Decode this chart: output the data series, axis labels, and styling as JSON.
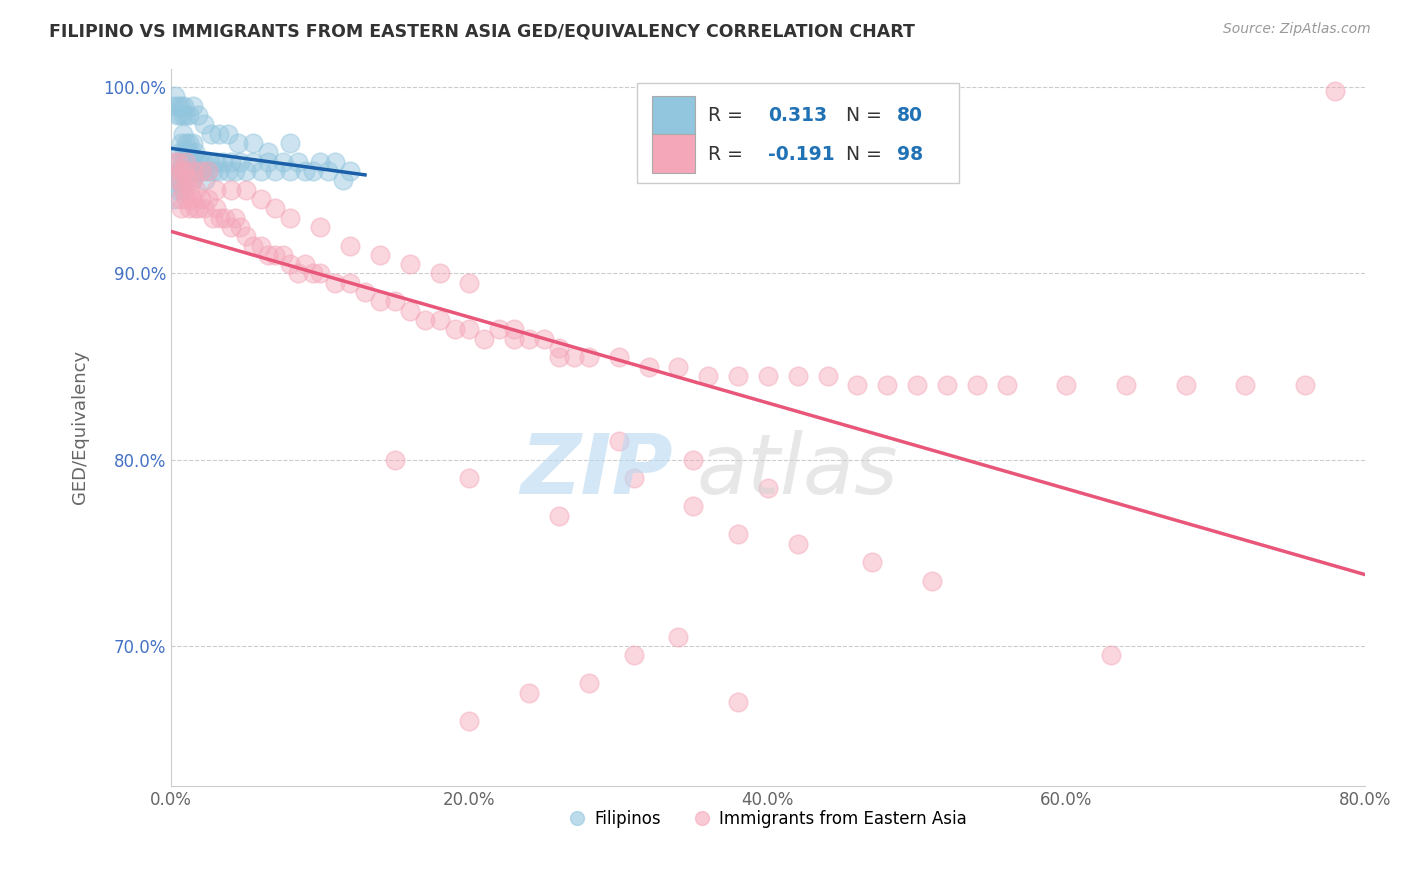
{
  "title": "FILIPINO VS IMMIGRANTS FROM EASTERN ASIA GED/EQUIVALENCY CORRELATION CHART",
  "source_text": "Source: ZipAtlas.com",
  "ylabel": "GED/Equivalency",
  "legend_labels": [
    "Filipinos",
    "Immigrants from Eastern Asia"
  ],
  "r_values": [
    0.313,
    -0.191
  ],
  "n_values": [
    80,
    98
  ],
  "blue_color": "#92c5de",
  "pink_color": "#f4a7b9",
  "blue_line_color": "#1a5fa8",
  "pink_line_color": "#e8567a",
  "r_text_color": "#2171b5",
  "background_color": "#ffffff",
  "xlim": [
    0.0,
    0.8
  ],
  "ylim": [
    0.625,
    1.01
  ],
  "xtick_labels": [
    "0.0%",
    "20.0%",
    "40.0%",
    "60.0%",
    "80.0%"
  ],
  "xtick_values": [
    0.0,
    0.2,
    0.4,
    0.6,
    0.8
  ],
  "ytick_labels": [
    "70.0%",
    "80.0%",
    "90.0%",
    "100.0%"
  ],
  "ytick_values": [
    0.7,
    0.8,
    0.9,
    1.0
  ],
  "blue_x": [
    0.002,
    0.003,
    0.004,
    0.005,
    0.005,
    0.006,
    0.006,
    0.007,
    0.007,
    0.008,
    0.008,
    0.008,
    0.009,
    0.009,
    0.01,
    0.01,
    0.01,
    0.011,
    0.011,
    0.012,
    0.012,
    0.013,
    0.013,
    0.014,
    0.014,
    0.015,
    0.015,
    0.016,
    0.017,
    0.018,
    0.019,
    0.02,
    0.021,
    0.022,
    0.023,
    0.025,
    0.026,
    0.028,
    0.03,
    0.032,
    0.035,
    0.038,
    0.04,
    0.043,
    0.046,
    0.05,
    0.055,
    0.06,
    0.065,
    0.07,
    0.075,
    0.08,
    0.085,
    0.09,
    0.095,
    0.1,
    0.105,
    0.11,
    0.115,
    0.12,
    0.002,
    0.003,
    0.004,
    0.005,
    0.006,
    0.007,
    0.008,
    0.009,
    0.01,
    0.012,
    0.015,
    0.018,
    0.022,
    0.027,
    0.032,
    0.038,
    0.045,
    0.055,
    0.065,
    0.08
  ],
  "blue_y": [
    0.94,
    0.95,
    0.955,
    0.945,
    0.96,
    0.95,
    0.965,
    0.955,
    0.97,
    0.96,
    0.975,
    0.945,
    0.965,
    0.955,
    0.97,
    0.96,
    0.95,
    0.965,
    0.955,
    0.97,
    0.96,
    0.965,
    0.955,
    0.96,
    0.95,
    0.96,
    0.97,
    0.965,
    0.955,
    0.96,
    0.955,
    0.96,
    0.955,
    0.96,
    0.95,
    0.955,
    0.96,
    0.955,
    0.96,
    0.955,
    0.96,
    0.955,
    0.96,
    0.955,
    0.96,
    0.955,
    0.96,
    0.955,
    0.96,
    0.955,
    0.96,
    0.955,
    0.96,
    0.955,
    0.955,
    0.96,
    0.955,
    0.96,
    0.95,
    0.955,
    0.99,
    0.995,
    0.985,
    0.99,
    0.985,
    0.99,
    0.985,
    0.99,
    0.985,
    0.985,
    0.99,
    0.985,
    0.98,
    0.975,
    0.975,
    0.975,
    0.97,
    0.97,
    0.965,
    0.97
  ],
  "pink_x": [
    0.002,
    0.004,
    0.005,
    0.006,
    0.007,
    0.007,
    0.008,
    0.009,
    0.01,
    0.011,
    0.012,
    0.013,
    0.014,
    0.015,
    0.016,
    0.017,
    0.018,
    0.02,
    0.022,
    0.025,
    0.028,
    0.03,
    0.033,
    0.036,
    0.04,
    0.043,
    0.046,
    0.05,
    0.055,
    0.06,
    0.065,
    0.07,
    0.075,
    0.08,
    0.085,
    0.09,
    0.095,
    0.1,
    0.11,
    0.12,
    0.13,
    0.14,
    0.15,
    0.16,
    0.17,
    0.18,
    0.19,
    0.2,
    0.21,
    0.22,
    0.23,
    0.24,
    0.25,
    0.26,
    0.27,
    0.28,
    0.3,
    0.32,
    0.34,
    0.36,
    0.38,
    0.4,
    0.42,
    0.44,
    0.46,
    0.48,
    0.5,
    0.52,
    0.54,
    0.56,
    0.6,
    0.64,
    0.68,
    0.72,
    0.76,
    0.006,
    0.01,
    0.015,
    0.02,
    0.025,
    0.03,
    0.04,
    0.05,
    0.06,
    0.07,
    0.08,
    0.1,
    0.12,
    0.14,
    0.16,
    0.18,
    0.2,
    0.23,
    0.26,
    0.3,
    0.35,
    0.4,
    0.78
  ],
  "pink_y": [
    0.96,
    0.95,
    0.96,
    0.94,
    0.95,
    0.935,
    0.945,
    0.955,
    0.94,
    0.95,
    0.935,
    0.945,
    0.94,
    0.95,
    0.935,
    0.945,
    0.935,
    0.94,
    0.935,
    0.94,
    0.93,
    0.935,
    0.93,
    0.93,
    0.925,
    0.93,
    0.925,
    0.92,
    0.915,
    0.915,
    0.91,
    0.91,
    0.91,
    0.905,
    0.9,
    0.905,
    0.9,
    0.9,
    0.895,
    0.895,
    0.89,
    0.885,
    0.885,
    0.88,
    0.875,
    0.875,
    0.87,
    0.87,
    0.865,
    0.87,
    0.865,
    0.865,
    0.865,
    0.86,
    0.855,
    0.855,
    0.855,
    0.85,
    0.85,
    0.845,
    0.845,
    0.845,
    0.845,
    0.845,
    0.84,
    0.84,
    0.84,
    0.84,
    0.84,
    0.84,
    0.84,
    0.84,
    0.84,
    0.84,
    0.84,
    0.955,
    0.96,
    0.955,
    0.955,
    0.955,
    0.945,
    0.945,
    0.945,
    0.94,
    0.935,
    0.93,
    0.925,
    0.915,
    0.91,
    0.905,
    0.9,
    0.895,
    0.87,
    0.855,
    0.81,
    0.8,
    0.785,
    0.998
  ],
  "pink_outliers_x": [
    0.15,
    0.2,
    0.26,
    0.31,
    0.35,
    0.38,
    0.42,
    0.47,
    0.51,
    0.63
  ],
  "pink_outliers_y": [
    0.8,
    0.79,
    0.77,
    0.79,
    0.775,
    0.76,
    0.755,
    0.745,
    0.735,
    0.695
  ],
  "pink_low_x": [
    0.2,
    0.24,
    0.28,
    0.31,
    0.34,
    0.38
  ],
  "pink_low_y": [
    0.66,
    0.675,
    0.68,
    0.695,
    0.705,
    0.67
  ]
}
